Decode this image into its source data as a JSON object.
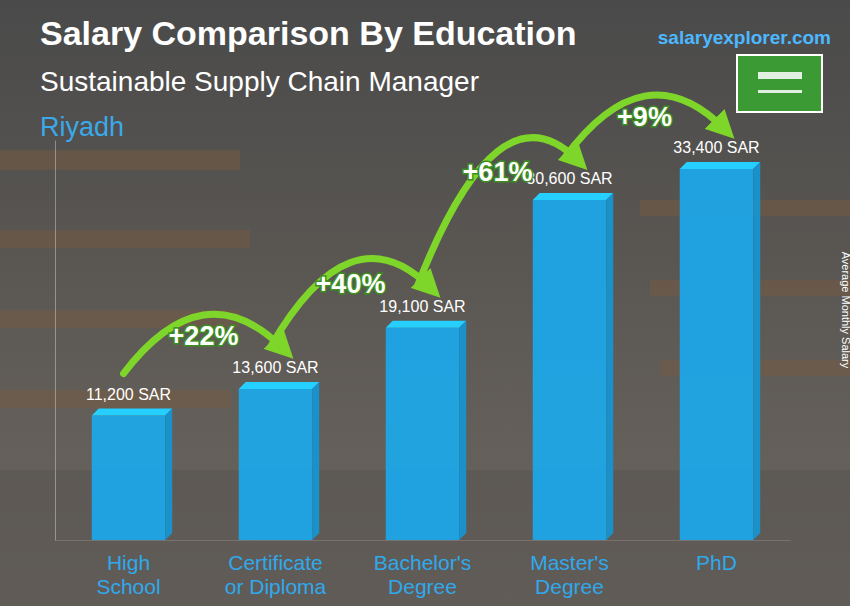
{
  "chart_data": {
    "type": "bar",
    "title": "Salary Comparison By Education",
    "subtitle": "Sustainable Supply Chain Manager",
    "location": "Riyadh",
    "source": "salaryexplorer.com",
    "ylabel": "Average Monthly Salary",
    "categories": [
      "High School",
      "Certificate or Diploma",
      "Bachelor's Degree",
      "Master's Degree",
      "PhD"
    ],
    "values": [
      11200,
      13600,
      19100,
      30600,
      33400
    ],
    "value_labels": [
      "11,200 SAR",
      "13,600 SAR",
      "19,100 SAR",
      "30,600 SAR",
      "33,400 SAR"
    ],
    "annotations": [
      "+22%",
      "+40%",
      "+61%",
      "+9%"
    ],
    "color": "#1ea7e8",
    "ylim": [
      0,
      36000
    ],
    "yticks": [],
    "data_labels": true,
    "tick_labels": "x"
  }
}
